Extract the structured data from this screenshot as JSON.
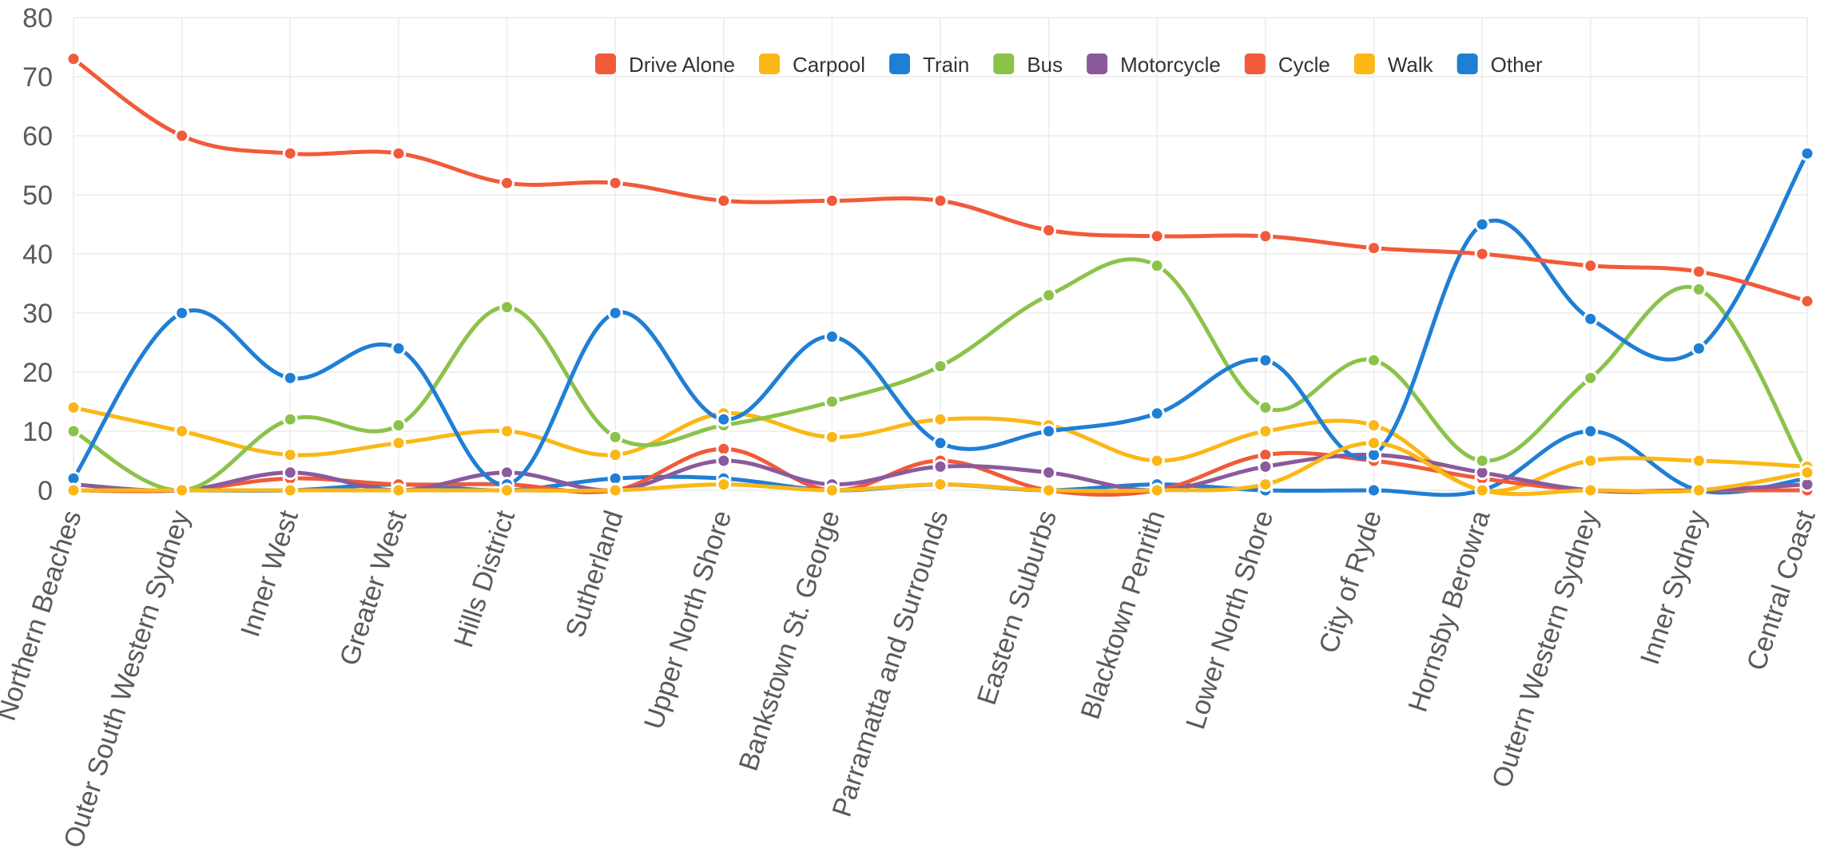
{
  "chart_data": {
    "type": "line",
    "smooth": true,
    "title": "",
    "xlabel": "",
    "ylabel": "",
    "ylim": [
      0,
      80
    ],
    "yticks": [
      0,
      10,
      20,
      30,
      40,
      50,
      60,
      70,
      80
    ],
    "grid": true,
    "legend_position": "top-right",
    "categories": [
      "Northern Beaches",
      "Outer South Western Sydney",
      "Inner West",
      "Greater West",
      "Hills District",
      "Sutherland",
      "Upper North Shore",
      "Bankstown St. George",
      "Parramatta and Surrounds",
      "Eastern Suburbs",
      "Blacktown Penrith",
      "Lower North Shore",
      "City of Ryde",
      "Hornsby Berowra",
      "Outern Western Sydney",
      "Inner Sydney",
      "Central Coast"
    ],
    "series": [
      {
        "name": "Drive Alone",
        "color": "#f15a3a",
        "values": [
          73,
          60,
          57,
          57,
          52,
          52,
          49,
          49,
          49,
          44,
          43,
          43,
          41,
          40,
          38,
          37,
          32
        ]
      },
      {
        "name": "Carpool",
        "color": "#fbb716",
        "values": [
          0,
          0,
          0,
          0,
          0,
          0,
          1,
          0,
          1,
          0,
          0,
          1,
          8,
          0,
          0,
          0,
          3
        ]
      },
      {
        "name": "Train",
        "color": "#1f7fd4",
        "values": [
          2,
          30,
          19,
          24,
          1,
          30,
          12,
          26,
          8,
          10,
          13,
          22,
          6,
          45,
          29,
          24,
          57
        ]
      },
      {
        "name": "Bus",
        "color": "#8bc34a",
        "values": [
          10,
          0,
          12,
          11,
          31,
          9,
          11,
          15,
          21,
          33,
          38,
          14,
          22,
          5,
          19,
          34,
          3
        ]
      },
      {
        "name": "Motorcycle",
        "color": "#8a5a9c",
        "values": [
          1,
          0,
          3,
          0,
          3,
          0,
          5,
          1,
          4,
          3,
          0,
          4,
          6,
          3,
          0,
          0,
          1
        ]
      },
      {
        "name": "Cycle",
        "color": "#f15a3a",
        "values": [
          0,
          0,
          2,
          1,
          1,
          0,
          7,
          0,
          5,
          0,
          0,
          6,
          5,
          2,
          0,
          0,
          0
        ]
      },
      {
        "name": "Walk",
        "color": "#fbb716",
        "values": [
          14,
          10,
          6,
          8,
          10,
          6,
          13,
          9,
          12,
          11,
          5,
          10,
          11,
          0,
          5,
          5,
          4
        ]
      },
      {
        "name": "Other",
        "color": "#1f7fd4",
        "values": [
          0,
          0,
          0,
          1,
          0,
          2,
          2,
          0,
          1,
          0,
          1,
          0,
          0,
          0,
          10,
          0,
          2
        ]
      }
    ]
  }
}
